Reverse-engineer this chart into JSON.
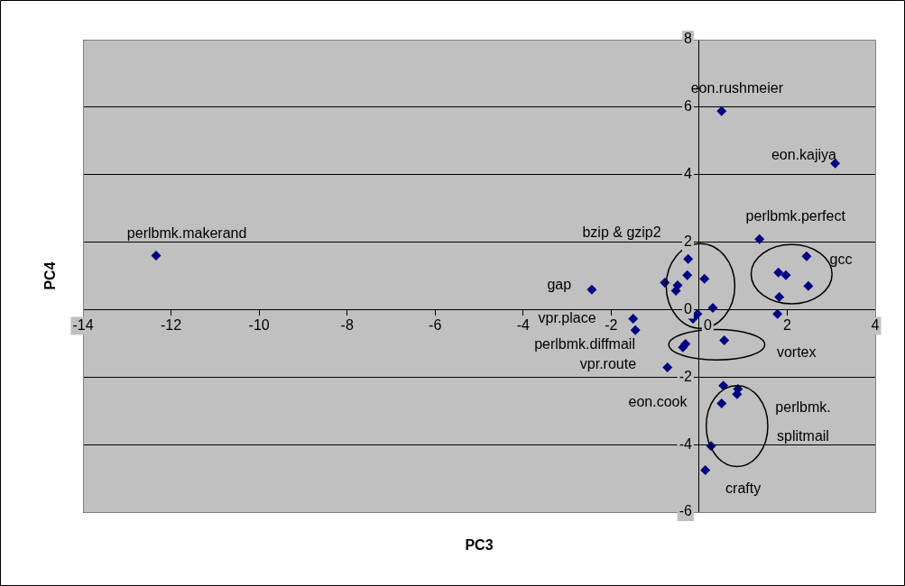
{
  "chart_data": {
    "type": "scatter",
    "xlabel": "PC3",
    "ylabel": "PC4",
    "xlim": [
      -14,
      4
    ],
    "xticks": [
      -14,
      -12,
      -10,
      -8,
      -6,
      -4,
      -2,
      0,
      2,
      4
    ],
    "ylim": [
      -6,
      8
    ],
    "yticks": [
      -6,
      -4,
      -2,
      0,
      2,
      4,
      6,
      8
    ],
    "grid": "y",
    "legend": false,
    "marker": "diamond",
    "series": [
      {
        "color": "#000080",
        "x": [
          -12.34,
          -2.44,
          0.51,
          3.09,
          1.37,
          2.44,
          1.8,
          1.97,
          2.48,
          1.82,
          1.78,
          -0.25,
          -0.27,
          -0.78,
          -0.49,
          -0.53,
          0.12,
          0.31,
          -0.04,
          -0.14,
          -1.5,
          -1.45,
          0.57,
          -0.31,
          -0.37,
          -0.72,
          0.55,
          0.88,
          0.86,
          0.51,
          0.27,
          0.14
        ],
        "values": [
          1.6,
          0.59,
          5.88,
          4.33,
          2.09,
          1.58,
          1.1,
          1.02,
          0.7,
          0.37,
          -0.13,
          1.5,
          1.02,
          0.8,
          0.72,
          0.56,
          0.91,
          0.05,
          -0.13,
          -0.27,
          -0.27,
          -0.61,
          -0.91,
          -1.02,
          -1.12,
          -1.71,
          -2.25,
          -2.35,
          -2.51,
          -2.78,
          -4.04,
          -4.76
        ]
      }
    ],
    "annotations": [
      "perlbmk.makerand",
      "gap",
      "eon.rushmeier",
      "eon.kajiya",
      "perlbmk.perfect",
      "bzip & gzip2",
      "gcc",
      "vpr.place",
      "perlbmk.diffmail",
      "vortex",
      "vpr.route",
      "eon.cook",
      "perlbmk.\nsplitmail",
      "crafty"
    ]
  }
}
